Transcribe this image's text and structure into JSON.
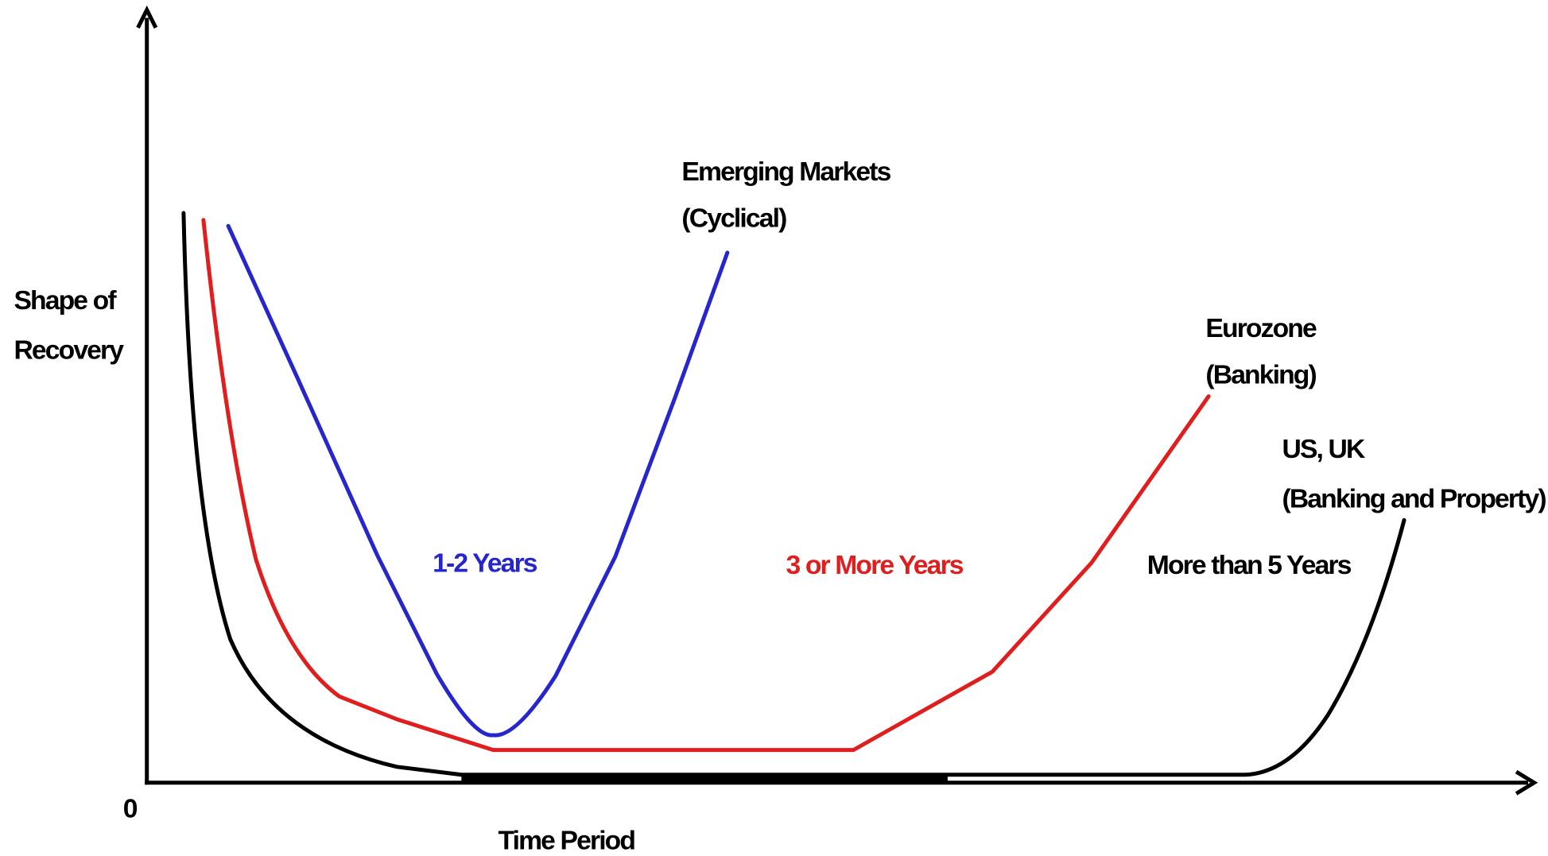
{
  "y_axis_label": [
    "Shape of",
    "Recovery"
  ],
  "origin_label": "0",
  "x_axis_label": "Time Period",
  "curves": [
    {
      "label": [
        "Emerging Markets",
        "(Cyclical)"
      ],
      "duration": "1-2 Years"
    },
    {
      "label": [
        "Eurozone",
        "(Banking)"
      ],
      "duration": "3 or More Years"
    },
    {
      "label": [
        "US, UK",
        "(Banking and Property)"
      ],
      "duration": "More than 5 Years"
    }
  ]
}
